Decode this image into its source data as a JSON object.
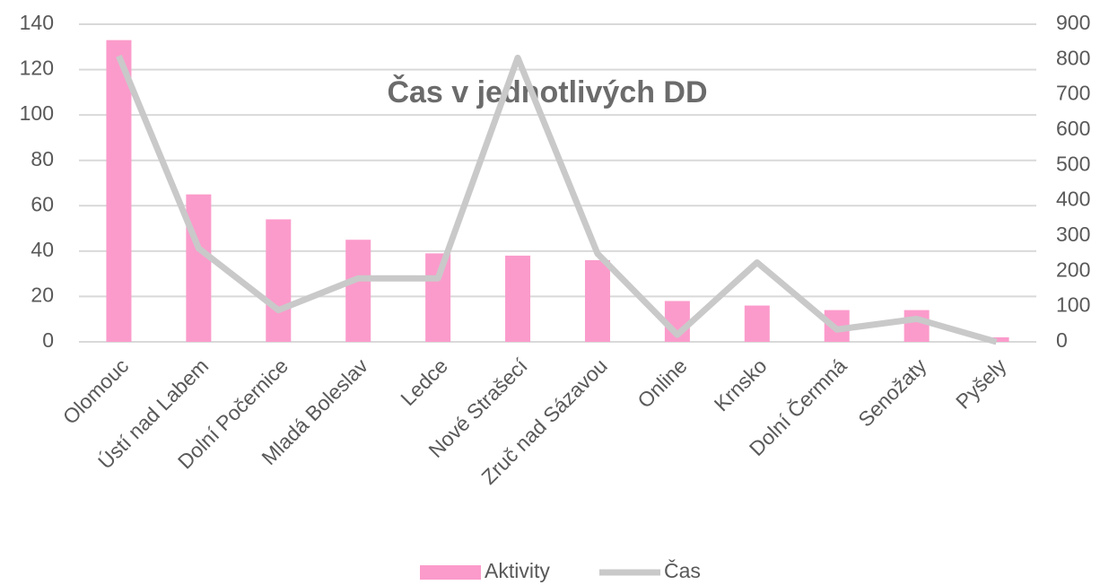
{
  "chart_data": {
    "type": "combo",
    "title": "Čas v jednotlivých DD",
    "categories": [
      "Olomouc",
      "Ústí nad Labem",
      "Dolní Počernice",
      "Mladá Boleslav",
      "Ledce",
      "Nové Strašecí",
      "Zruč nad Sázavou",
      "Online",
      "Krnsko",
      "Dolní Čermná",
      "Senožaty",
      "Pyšely"
    ],
    "series": [
      {
        "name": "Aktivity",
        "type": "bar",
        "color": "#fb9bcb",
        "values": [
          133,
          65,
          54,
          45,
          39,
          38,
          36,
          18,
          16,
          14,
          14,
          2
        ]
      },
      {
        "name": "Čas",
        "type": "line",
        "axis": "y2",
        "color": "#c9c9c9",
        "values": [
          810,
          265,
          90,
          180,
          180,
          805,
          250,
          20,
          225,
          35,
          65,
          0
        ]
      }
    ],
    "ylim": [
      0,
      140
    ],
    "yticks": [
      0,
      20,
      40,
      60,
      80,
      100,
      120,
      140
    ],
    "y2lim": [
      0,
      900
    ],
    "y2ticks": [
      0,
      100,
      200,
      300,
      400,
      500,
      600,
      700,
      800,
      900
    ],
    "grid": true,
    "legend": "bottom"
  }
}
